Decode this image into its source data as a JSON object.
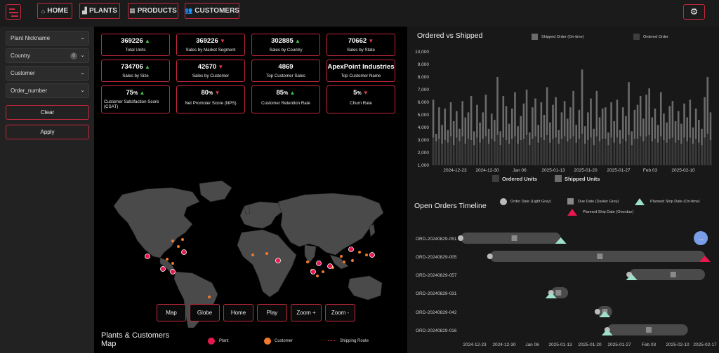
{
  "nav": {
    "home": "HOME",
    "plants": "PLANTS",
    "products": "PRODUCTS",
    "customers": "CUSTOMERS"
  },
  "sidebar": {
    "filters": [
      {
        "label": "Plant Nickname"
      },
      {
        "label": "Country",
        "badge": "0"
      },
      {
        "label": "Customer"
      },
      {
        "label": "Order_number"
      }
    ],
    "clear": "Clear",
    "apply": "Apply"
  },
  "kpis": [
    {
      "value": "369226",
      "label": "Total Units",
      "trend": "up"
    },
    {
      "value": "369226",
      "label": "Sales by Market Segment",
      "trend": "down"
    },
    {
      "value": "302885",
      "label": "Sales by Country",
      "trend": "up"
    },
    {
      "value": "70662",
      "label": "Sales by State",
      "trend": "down"
    },
    {
      "value": "734706",
      "label": "Sales by Size",
      "trend": "up"
    },
    {
      "value": "42670",
      "label": "Sales by Customer",
      "trend": "down"
    },
    {
      "value": "4869",
      "label": "Top Customer Sales",
      "trend": ""
    },
    {
      "value": "ApexPoint Industries",
      "label": "Top Customer Name",
      "trend": ""
    },
    {
      "value": "75",
      "unit": "%",
      "label": "Customer Satisfaction Score",
      "label2": "(CSAT)",
      "trend": "up"
    },
    {
      "value": "80",
      "unit": "%",
      "label": "Net Promoter Score (NPS)",
      "trend": "down"
    },
    {
      "value": "85",
      "unit": "%",
      "label": "Customer Retention Rate",
      "trend": "up"
    },
    {
      "value": "5",
      "unit": "%",
      "label": "Churn Rate",
      "trend": "down"
    }
  ],
  "map": {
    "buttons": [
      "Map",
      "Globe",
      "Home",
      "Play",
      "Zoom +",
      "Zoom -"
    ],
    "title": "Plants & Customers Map",
    "legend": {
      "plant": "Plant",
      "customer": "Customer",
      "route": "Shipping Route"
    },
    "colors": {
      "plant": "#e8184f",
      "customer": "#f07a2a",
      "land": "#4a4a4a"
    }
  },
  "ordered_vs_shipped": {
    "title": "Ordered vs Shipped",
    "legend_top": [
      "Shipped Order (On-time)",
      "Ordered Order"
    ],
    "legend_bottom": [
      "Ordered Units",
      "Shipped Units"
    ],
    "y_ticks": [
      "10,000",
      "9,000",
      "8,000",
      "7,000",
      "6,000",
      "5,000",
      "4,000",
      "3,000",
      "2,000",
      "1,000"
    ],
    "x_ticks": [
      "2024-12-23",
      "2024-12-30",
      "Jan 06",
      "2025-01-13",
      "2025-01-20",
      "2025-01-27",
      "Feb 03",
      "2025-02-10"
    ]
  },
  "chart_data": {
    "type": "bar",
    "ylim": [
      1000,
      10000
    ],
    "series": [
      {
        "name": "Ordered Units",
        "values": [
          6200,
          3500,
          5600,
          4200,
          5500,
          3800,
          6000,
          4500,
          5300,
          3900,
          6100,
          4800,
          5200,
          6500,
          3700,
          5800,
          4400,
          5200,
          6600,
          3900,
          5100,
          4600,
          8000,
          3700,
          6500,
          5700,
          4300,
          5500,
          6800,
          4100,
          4900,
          5900,
          7000,
          3600,
          5600,
          6300,
          4200,
          6000,
          5000,
          7200,
          4400,
          5800,
          6400,
          3800,
          5200,
          6100,
          4700,
          5600,
          6900,
          4200,
          5400,
          8600,
          4100,
          5200,
          6300,
          3900,
          6900,
          4800,
          5500,
          5600,
          3600,
          6000,
          4500,
          6200,
          3800,
          5600,
          4900,
          7600,
          3700,
          5400,
          5800,
          6500,
          4700,
          6600,
          7100,
          4800,
          5500,
          4200,
          6800,
          5100,
          4400,
          5700,
          6100,
          4500,
          5300,
          4300,
          5900,
          4800,
          6200,
          4000,
          5500,
          4600,
          3900,
          6400,
          8000,
          5200
        ]
      },
      {
        "name": "Shipped Units",
        "values": [
          3200,
          2900,
          3100,
          2700,
          3000,
          2800,
          3300,
          2600,
          3200,
          2900,
          3300,
          2700,
          3100,
          3000,
          2600,
          3200,
          2800,
          3100,
          3300,
          2700,
          3100,
          2900,
          3400,
          2600,
          3200,
          3000,
          2700,
          3100,
          3300,
          2700,
          3000,
          3100,
          3400,
          2600,
          3100,
          3300,
          2800,
          3200,
          3000,
          3400,
          2800,
          3100,
          3200,
          2700,
          3100,
          3300,
          2900,
          3100,
          3300,
          2800,
          3100,
          3500,
          2700,
          3000,
          3200,
          2600,
          3300,
          2900,
          3100,
          3100,
          2600,
          3200,
          2800,
          3200,
          2700,
          3100,
          2900,
          3400,
          2600,
          3100,
          3100,
          3300,
          2900,
          3300,
          3400,
          2900,
          3100,
          2800,
          3300,
          3000,
          2800,
          3100,
          3200,
          2800,
          3000,
          2700,
          3200,
          2900,
          3200,
          2700,
          3100,
          2800,
          2600,
          3200,
          3500,
          3000
        ]
      }
    ]
  },
  "timeline": {
    "title": "Open Orders Timeline",
    "legend": [
      "Order Date (Light Grey)",
      "Due Date (Darker Grey)",
      "Planned Ship Date (On-time)",
      "Planned Ship Date (Overdue)"
    ],
    "orders": [
      {
        "id": "ORD-20240829-051",
        "start": 0.0,
        "end": 0.41,
        "due": 0.22,
        "ship": 0.41,
        "overdue": false
      },
      {
        "id": "ORD-20240829-005",
        "start": 0.12,
        "end": 1.0,
        "due": 0.57,
        "ship": 1.0,
        "overdue": true
      },
      {
        "id": "ORD-20240829-057",
        "start": 0.69,
        "end": 1.0,
        "due": 0.87,
        "ship": 0.7,
        "overdue": false
      },
      {
        "id": "ORD-20240829-031",
        "start": 0.37,
        "end": 0.44,
        "due": 0.4,
        "ship": 0.37,
        "overdue": false
      },
      {
        "id": "ORD-20240829-042",
        "start": 0.56,
        "end": 0.62,
        "due": 0.59,
        "ship": 0.59,
        "overdue": false
      },
      {
        "id": "ORD-20240829-016",
        "start": 0.6,
        "end": 0.93,
        "due": 0.77,
        "ship": 0.6,
        "overdue": false
      }
    ],
    "x_ticks": [
      "2024-12-23",
      "2024-12-30",
      "Jan 06",
      "2025-01-13",
      "2025-01-20",
      "2025-01-27",
      "Feb 03",
      "2025-02-10",
      "2025-02-17"
    ],
    "more": "..."
  }
}
